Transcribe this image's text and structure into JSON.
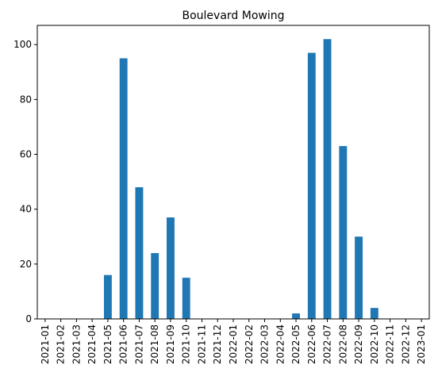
{
  "chart_data": {
    "type": "bar",
    "title": "Boulevard Mowing",
    "xlabel": "",
    "ylabel": "",
    "categories": [
      "2021-01",
      "2021-02",
      "2021-03",
      "2021-04",
      "2021-05",
      "2021-06",
      "2021-07",
      "2021-08",
      "2021-09",
      "2021-10",
      "2021-11",
      "2021-12",
      "2022-01",
      "2022-02",
      "2022-03",
      "2022-04",
      "2022-05",
      "2022-06",
      "2022-07",
      "2022-08",
      "2022-09",
      "2022-10",
      "2022-11",
      "2022-12",
      "2023-01"
    ],
    "values": [
      0,
      0,
      0,
      0,
      16,
      95,
      48,
      24,
      37,
      15,
      0,
      0,
      0,
      0,
      0,
      0,
      2,
      97,
      102,
      63,
      30,
      4,
      0,
      0,
      0
    ],
    "ylim": [
      0,
      107
    ],
    "yticks": [
      0,
      20,
      40,
      60,
      80,
      100
    ],
    "grid": false,
    "legend": "none",
    "bar_color": "#1f77b4"
  }
}
